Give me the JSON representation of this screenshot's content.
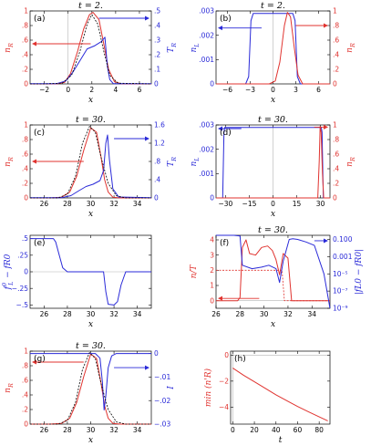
{
  "colors": {
    "red": "#e0332f",
    "blue": "#2a2ad8",
    "black": "#000000",
    "gray": "#b4b4b4"
  },
  "chart_data": [
    {
      "type": "line",
      "panel": "(a)",
      "title": "t = 2.",
      "xlabel": "x",
      "ylabel_left": "n_R",
      "ylabel_right": "T_R",
      "xlim": [
        -3.2,
        7
      ],
      "ylim_left": [
        0,
        1
      ],
      "ylim_right": [
        0,
        0.5
      ],
      "xticks": [
        -2,
        0,
        2,
        4,
        6
      ],
      "yticks_left": [
        0,
        0.2,
        0.4,
        0.6,
        0.8,
        1
      ],
      "yticks_right": [
        0,
        0.1,
        0.2,
        0.3,
        0.4,
        0.5
      ],
      "annotations": [
        {
          "text": "←",
          "axis": "left",
          "x": 1.9,
          "y": 0.55
        },
        {
          "text": "→",
          "axis": "right",
          "x": 2.6,
          "y": 0.45
        }
      ],
      "series": [
        {
          "color": "red",
          "axis": "left",
          "x": [
            -3.2,
            -2,
            -1,
            -0.3,
            0.2,
            0.8,
            1.3,
            1.8,
            2.1,
            2.6,
            3.0,
            3.4,
            3.9,
            4.5,
            7
          ],
          "y": [
            0,
            0,
            0,
            0.02,
            0.14,
            0.45,
            0.75,
            0.95,
            0.98,
            0.88,
            0.55,
            0.2,
            0.03,
            0,
            0
          ]
        },
        {
          "color": "blue",
          "axis": "right",
          "x": [
            -3.2,
            -1,
            -0.2,
            0.4,
            1.0,
            1.6,
            2.2,
            2.8,
            3.1,
            3.3,
            3.5,
            3.8,
            7
          ],
          "y": [
            0.001,
            0.001,
            0.02,
            0.08,
            0.16,
            0.24,
            0.26,
            0.29,
            0.32,
            0.12,
            0.03,
            0.002,
            0.001
          ]
        },
        {
          "color": "black",
          "axis": "left",
          "dashed": true,
          "x": [
            -3.2,
            -2,
            -0.5,
            0.3,
            1.0,
            1.6,
            2.0,
            2.5,
            3.0,
            3.5,
            4.2,
            7
          ],
          "y": [
            0,
            0,
            0.01,
            0.12,
            0.45,
            0.82,
            0.95,
            0.82,
            0.45,
            0.12,
            0.01,
            0
          ]
        }
      ]
    },
    {
      "type": "line",
      "panel": "(b)",
      "title": "t = 2.",
      "xlabel": "x",
      "ylabel_left": "n_L",
      "ylabel_right": "n_R",
      "xlim": [
        -7.5,
        7.5
      ],
      "ylim_left": [
        0,
        0.003
      ],
      "ylim_right": [
        0,
        1
      ],
      "xticks": [
        -6,
        -3,
        0,
        3,
        6
      ],
      "yticks_left": [
        0,
        0.001,
        0.002,
        0.003
      ],
      "yticks_right": [
        0,
        0.2,
        0.4,
        0.6,
        0.8,
        1
      ],
      "annotations": [
        {
          "text": "←",
          "axis": "left",
          "x": -1.5,
          "y": 0.0023
        },
        {
          "text": "→",
          "axis": "right",
          "x": 3.0,
          "y": 0.8
        }
      ],
      "series": [
        {
          "color": "blue",
          "axis": "left",
          "x": [
            -7.5,
            -3.6,
            -3.2,
            -2.9,
            -2.6,
            2.6,
            2.9,
            3.2,
            3.6,
            7.5
          ],
          "y": [
            0,
            0,
            0.0003,
            0.0026,
            0.0029,
            0.0029,
            0.0026,
            0.0003,
            0,
            0
          ]
        },
        {
          "color": "red",
          "axis": "right",
          "x": [
            -7.5,
            -0.5,
            0.3,
            0.9,
            1.5,
            1.9,
            2.3,
            2.8,
            3.3,
            3.9,
            7.5
          ],
          "y": [
            0,
            0,
            0.04,
            0.3,
            0.8,
            0.98,
            0.92,
            0.5,
            0.12,
            0,
            0
          ]
        }
      ]
    },
    {
      "type": "line",
      "panel": "(c)",
      "title": "t = 30.",
      "xlabel": "x",
      "ylabel_left": "n_R",
      "ylabel_right": "T_R",
      "xlim": [
        24.8,
        35.2
      ],
      "ylim_left": [
        0,
        1
      ],
      "ylim_right": [
        0,
        1.6
      ],
      "xticks": [
        26,
        28,
        30,
        32,
        34
      ],
      "yticks_left": [
        0,
        0.2,
        0.4,
        0.6,
        0.8,
        1
      ],
      "yticks_right": [
        0,
        0.4,
        0.8,
        1.2,
        1.6
      ],
      "annotations": [
        {
          "text": "←",
          "axis": "left",
          "x": 29.4,
          "y": 0.5
        },
        {
          "text": "→",
          "axis": "right",
          "x": 32.0,
          "y": 1.3
        }
      ],
      "series": [
        {
          "color": "red",
          "axis": "left",
          "x": [
            24.8,
            26.5,
            27.5,
            28.2,
            28.8,
            29.4,
            30.0,
            30.5,
            30.9,
            31.2,
            31.5,
            31.9,
            32.5,
            35.2
          ],
          "y": [
            0,
            0,
            0.01,
            0.08,
            0.3,
            0.65,
            0.96,
            0.9,
            0.55,
            0.25,
            0.08,
            0.01,
            0,
            0
          ]
        },
        {
          "color": "blue",
          "axis": "right",
          "x": [
            24.8,
            27.5,
            28.3,
            29.0,
            29.6,
            30.2,
            30.8,
            31.1,
            31.3,
            31.45,
            31.6,
            31.9,
            32.4,
            35.2
          ],
          "y": [
            0.003,
            0.003,
            0.05,
            0.16,
            0.25,
            0.3,
            0.38,
            0.6,
            1.2,
            1.38,
            0.85,
            0.2,
            0.02,
            0.003
          ]
        },
        {
          "color": "black",
          "axis": "left",
          "dashed": true,
          "x": [
            24.8,
            27.2,
            28.0,
            28.7,
            29.3,
            29.9,
            30.4,
            30.9,
            31.5,
            32.2,
            33.0,
            35.2
          ],
          "y": [
            0,
            0,
            0.05,
            0.3,
            0.75,
            0.98,
            0.9,
            0.55,
            0.2,
            0.03,
            0,
            0
          ]
        }
      ]
    },
    {
      "type": "line",
      "panel": "(d)",
      "title": "t = 30.",
      "xlabel": "x",
      "ylabel_left": "n_L",
      "ylabel_right": "n_R",
      "xlim": [
        -36,
        36
      ],
      "ylim_left": [
        0,
        0.003
      ],
      "ylim_right": [
        0,
        1
      ],
      "xticks": [
        -30,
        -15,
        0,
        15,
        30
      ],
      "yticks_left": [
        0,
        0.001,
        0.002,
        0.003
      ],
      "yticks_right": [
        0,
        0.2,
        0.4,
        0.6,
        0.8,
        1
      ],
      "annotations": [
        {
          "text": "←",
          "axis": "left",
          "x": -20,
          "y": 0.00285
        },
        {
          "text": "→",
          "axis": "right",
          "x": 26,
          "y": 0.97
        }
      ],
      "series": [
        {
          "color": "blue",
          "axis": "left",
          "x": [
            -36,
            -31.8,
            -31.0,
            -30.5,
            30.5,
            31.0,
            31.8,
            36
          ],
          "y": [
            0,
            0,
            0.0027,
            0.0029,
            0.0029,
            0.0027,
            0,
            0
          ]
        },
        {
          "color": "red",
          "axis": "right",
          "x": [
            -36,
            28.3,
            29.2,
            29.8,
            30.4,
            31.2,
            32.0,
            36
          ],
          "y": [
            0,
            0,
            0.5,
            0.98,
            0.9,
            0.35,
            0,
            0
          ]
        }
      ]
    },
    {
      "type": "line",
      "panel": "(e)",
      "title": "",
      "xlabel": "x",
      "ylabel_left": "f_L^0 − f_R^0",
      "xlim": [
        24.8,
        35.2
      ],
      "ylim_left": [
        -0.55,
        0.55
      ],
      "xticks": [
        26,
        28,
        30,
        32,
        34
      ],
      "yticks_left": [
        -0.5,
        -0.25,
        0,
        0.25,
        0.5
      ],
      "series": [
        {
          "color": "blue",
          "axis": "left",
          "x": [
            24.8,
            26.8,
            27.0,
            27.3,
            27.6,
            28.0,
            31.1,
            31.3,
            31.5,
            32.0,
            32.3,
            32.6,
            33.0,
            35.2
          ],
          "y": [
            0.5,
            0.5,
            0.45,
            0.25,
            0.06,
            0,
            0,
            -0.3,
            -0.49,
            -0.5,
            -0.45,
            -0.2,
            0,
            0
          ]
        }
      ]
    },
    {
      "type": "line",
      "panel": "(f)",
      "title": "t = 30.",
      "xlabel": "x",
      "ylabel_left": "n/T",
      "ylabel_right": "|f_L^0 − f_R^0|",
      "xlim": [
        26,
        35.5
      ],
      "ylim_left": [
        -0.5,
        4.3
      ],
      "ylim_right": [
        1e-09,
        0.3
      ],
      "yscale_right": "log",
      "xticks": [
        26,
        28,
        30,
        32,
        34
      ],
      "yticks_left": [
        0,
        1,
        2,
        3,
        4
      ],
      "yticks_right": [
        1e-09,
        1e-07,
        1e-05,
        0.001,
        0.1
      ],
      "yticklabels_right": [
        "10⁻⁹",
        "10⁻⁷",
        "10⁻⁵",
        "0.001",
        "0.100"
      ],
      "annotations": [
        {
          "text": "←",
          "axis": "left",
          "x": 29.6,
          "y": 0.15
        },
        {
          "text": "→",
          "axis": "right",
          "x": 34.2,
          "y": 0.07
        }
      ],
      "series": [
        {
          "color": "red",
          "axis": "left",
          "x": [
            26,
            27.8,
            28.0,
            28.2,
            28.5,
            28.8,
            29.3,
            29.8,
            30.3,
            30.7,
            31.0,
            31.3,
            31.6,
            32.0,
            32.3,
            35.5
          ],
          "y": [
            0,
            0,
            0.2,
            3.5,
            4.0,
            3.1,
            3.0,
            3.5,
            3.6,
            3.3,
            2.7,
            1.7,
            3.1,
            2.8,
            0,
            0
          ]
        },
        {
          "color": "red",
          "axis": "left",
          "dashed": true,
          "x": [
            26,
            28.0,
            31.5,
            31.7,
            35.5
          ],
          "y": [
            2.0,
            2.0,
            2.0,
            0,
            0
          ]
        },
        {
          "color": "blue",
          "axis": "right",
          "logy": true,
          "x": [
            26,
            27.5,
            28.0,
            28.2,
            29.0,
            29.8,
            30.4,
            31.0,
            31.3,
            31.6,
            32.1,
            32.4,
            32.8,
            33.5,
            34.2,
            35.0,
            35.5
          ],
          "y": [
            0.3,
            0.3,
            0.25,
            0.0001,
            4e-05,
            6e-05,
            0.0001,
            4e-05,
            1e-06,
            0.0003,
            0.1,
            0.12,
            0.1,
            0.05,
            0.02,
            1e-05,
            1e-09
          ]
        }
      ]
    },
    {
      "type": "line",
      "panel": "(g)",
      "title": "t = 30.",
      "xlabel": "x",
      "ylabel_left": "n_R",
      "ylabel_right": "I",
      "xlim": [
        24.8,
        35.2
      ],
      "ylim_left": [
        0,
        1
      ],
      "ylim_right": [
        -0.03,
        0.001
      ],
      "xticks": [
        26,
        28,
        30,
        32,
        34
      ],
      "yticks_left": [
        0,
        0.2,
        0.4,
        0.6,
        0.8,
        1
      ],
      "yticks_right": [
        0,
        -0.01,
        -0.02,
        -0.03
      ],
      "annotations": [
        {
          "text": "←",
          "axis": "left",
          "x": 29.4,
          "y": 0.85
        },
        {
          "text": "→",
          "axis": "right",
          "x": 32.0,
          "y": -0.006
        }
      ],
      "series": [
        {
          "color": "red",
          "axis": "left",
          "x": [
            24.8,
            26.5,
            27.5,
            28.2,
            28.8,
            29.4,
            30.0,
            30.5,
            30.9,
            31.2,
            31.5,
            31.9,
            32.5,
            35.2
          ],
          "y": [
            0,
            0,
            0.01,
            0.08,
            0.3,
            0.65,
            0.96,
            0.9,
            0.55,
            0.25,
            0.08,
            0.01,
            0,
            0
          ]
        },
        {
          "color": "blue",
          "axis": "right",
          "x": [
            24.8,
            30.4,
            30.8,
            31.0,
            31.15,
            31.3,
            31.5,
            31.8,
            32.2,
            35.2
          ],
          "y": [
            0,
            0,
            -0.002,
            -0.012,
            -0.024,
            -0.018,
            -0.006,
            -0.001,
            0,
            0
          ]
        },
        {
          "color": "black",
          "axis": "left",
          "dashed": true,
          "x": [
            24.8,
            27.2,
            28.0,
            28.7,
            29.3,
            29.9,
            30.4,
            30.9,
            31.5,
            32.2,
            33.0,
            35.2
          ],
          "y": [
            0,
            0,
            0.05,
            0.3,
            0.75,
            0.98,
            0.9,
            0.55,
            0.2,
            0.03,
            0,
            0
          ]
        }
      ]
    },
    {
      "type": "line",
      "panel": "(h)",
      "title": "",
      "xlabel": "t",
      "ylabel_left": "min (n'_R)",
      "xlim": [
        -2,
        90
      ],
      "ylim_left": [
        -5.3,
        0.3
      ],
      "xticks": [
        0,
        20,
        40,
        60,
        80
      ],
      "yticks_left": [
        0,
        -2,
        -4
      ],
      "series": [
        {
          "color": "red",
          "axis": "left",
          "x": [
            0,
            10,
            20,
            30,
            40,
            50,
            60,
            70,
            80,
            88
          ],
          "y": [
            -1.0,
            -1.55,
            -2.05,
            -2.55,
            -3.05,
            -3.5,
            -3.95,
            -4.35,
            -4.75,
            -5.05
          ]
        }
      ]
    }
  ]
}
